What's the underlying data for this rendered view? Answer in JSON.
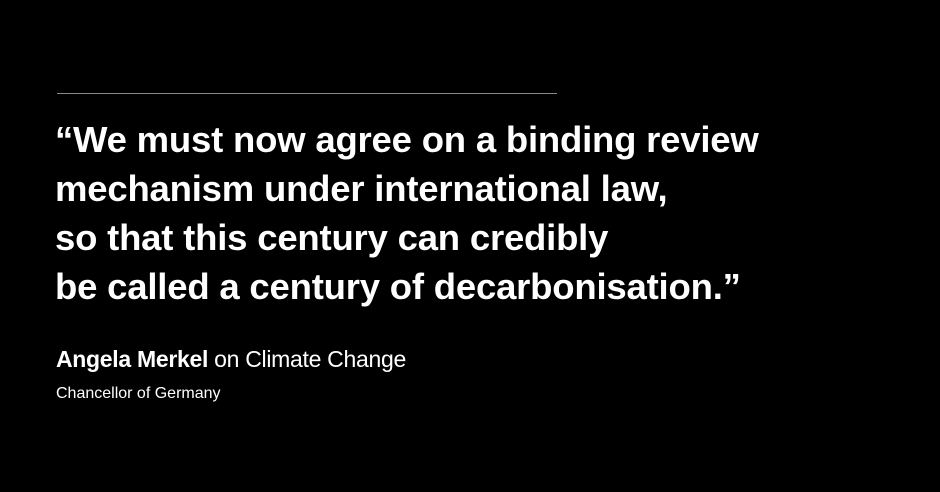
{
  "quote": {
    "lines": [
      "“We must now agree on a binding review",
      "mechanism under international law,",
      "so that this century can credibly",
      "be called a century of decarbonisation.”"
    ]
  },
  "attribution": {
    "name": "Angela Merkel",
    "topic": " on Climate Change",
    "role": "Chancellor of Germany"
  },
  "colors": {
    "background": "#000000",
    "text": "#ffffff",
    "rule": "#8a8a8a"
  }
}
